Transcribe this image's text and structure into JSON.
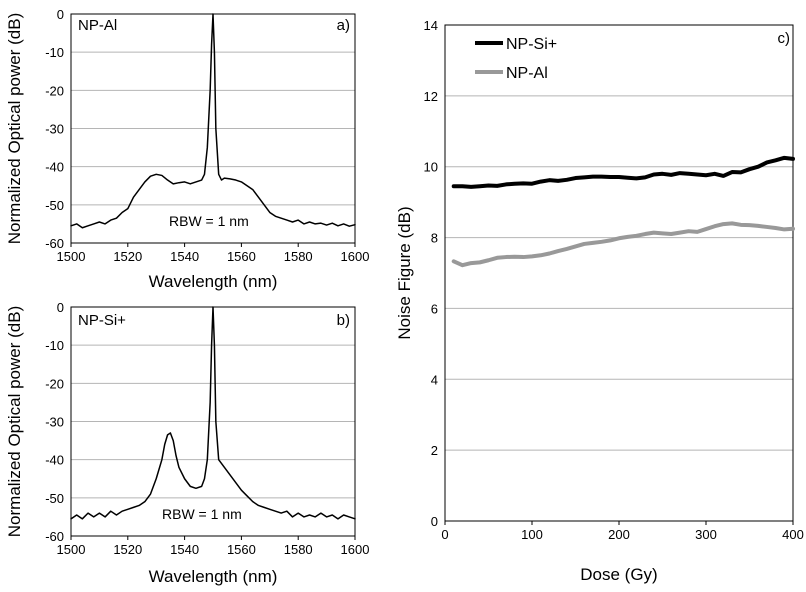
{
  "chart_data": [
    {
      "id": "a",
      "type": "line",
      "panel_label": "a)",
      "series_label": "NP-Al",
      "annotation": "RBW = 1 nm",
      "xlabel": "Wavelength (nm)",
      "ylabel": "Normalized Optical power (dB)",
      "xlim": [
        1500,
        1600
      ],
      "ylim": [
        -60,
        0
      ],
      "xticks": [
        "1500",
        "1520",
        "1540",
        "1560",
        "1580",
        "1600"
      ],
      "yticks": [
        "0",
        "-10",
        "-20",
        "-30",
        "-40",
        "-50",
        "-60"
      ],
      "grid": "horizontal",
      "series": [
        {
          "color": "#000000",
          "x": [
            1500,
            1502,
            1504,
            1506,
            1508,
            1510,
            1512,
            1514,
            1516,
            1518,
            1520,
            1522,
            1524,
            1526,
            1528,
            1530,
            1532,
            1534,
            1536,
            1538,
            1540,
            1542,
            1544,
            1546,
            1547,
            1548,
            1549,
            1549.5,
            1550,
            1550.5,
            1551,
            1552,
            1553,
            1554,
            1556,
            1558,
            1560,
            1562,
            1564,
            1566,
            1568,
            1570,
            1572,
            1574,
            1576,
            1578,
            1580,
            1582,
            1584,
            1586,
            1588,
            1590,
            1592,
            1594,
            1596,
            1598,
            1600
          ],
          "y": [
            -55.5,
            -55,
            -56,
            -55.5,
            -55,
            -54.5,
            -55,
            -54,
            -53.5,
            -52,
            -51,
            -48,
            -46,
            -44,
            -42.5,
            -42,
            -42.3,
            -43.5,
            -44.5,
            -44.2,
            -44,
            -44.5,
            -44,
            -43.5,
            -42,
            -35,
            -20,
            -8,
            0,
            -10,
            -30,
            -42,
            -43.5,
            -43,
            -43.2,
            -43.5,
            -44,
            -45,
            -46,
            -48,
            -50,
            -52,
            -53,
            -53.5,
            -54,
            -54.5,
            -54,
            -55,
            -54.5,
            -55,
            -54.8,
            -55.3,
            -54.8,
            -55.5,
            -55,
            -55.6,
            -55.2
          ]
        }
      ]
    },
    {
      "id": "b",
      "type": "line",
      "panel_label": "b)",
      "series_label": "NP-Si+",
      "annotation": "RBW = 1 nm",
      "xlabel": "Wavelength (nm)",
      "ylabel": "Normalized Optical power (dB)",
      "xlim": [
        1500,
        1600
      ],
      "ylim": [
        -60,
        0
      ],
      "xticks": [
        "1500",
        "1520",
        "1540",
        "1560",
        "1580",
        "1600"
      ],
      "yticks": [
        "0",
        "-10",
        "-20",
        "-30",
        "-40",
        "-50",
        "-60"
      ],
      "grid": "horizontal",
      "series": [
        {
          "color": "#000000",
          "x": [
            1500,
            1502,
            1504,
            1506,
            1508,
            1510,
            1512,
            1514,
            1516,
            1518,
            1520,
            1522,
            1524,
            1526,
            1528,
            1530,
            1532,
            1533,
            1534,
            1535,
            1536,
            1537,
            1538,
            1540,
            1542,
            1544,
            1546,
            1547,
            1548,
            1549,
            1549.5,
            1550,
            1550.5,
            1551,
            1552,
            1554,
            1556,
            1558,
            1560,
            1562,
            1564,
            1566,
            1568,
            1570,
            1572,
            1574,
            1576,
            1578,
            1580,
            1582,
            1584,
            1586,
            1588,
            1590,
            1592,
            1594,
            1596,
            1598,
            1600
          ],
          "y": [
            -55.5,
            -54.5,
            -55.5,
            -54,
            -55,
            -54,
            -55,
            -53.5,
            -54.5,
            -53.5,
            -53,
            -52.5,
            -52,
            -51,
            -49,
            -45,
            -40,
            -36,
            -33.5,
            -33,
            -35,
            -39,
            -42,
            -45,
            -47,
            -47.5,
            -47,
            -45,
            -40,
            -25,
            -10,
            0,
            -10,
            -30,
            -40,
            -42,
            -44,
            -46,
            -48,
            -49.5,
            -51,
            -52,
            -52.5,
            -53,
            -53.5,
            -54,
            -53.5,
            -55,
            -54,
            -55,
            -54.5,
            -55,
            -54,
            -55,
            -54.5,
            -55.5,
            -54.5,
            -55,
            -55.5
          ]
        }
      ]
    },
    {
      "id": "c",
      "type": "line",
      "panel_label": "c)",
      "xlabel": "Dose (Gy)",
      "ylabel": "Noise Figure (dB)",
      "xlim": [
        0,
        400
      ],
      "ylim": [
        0,
        14
      ],
      "xticks": [
        "0",
        "100",
        "200",
        "300",
        "400"
      ],
      "yticks": [
        "14",
        "12",
        "10",
        "8",
        "6",
        "4",
        "2",
        "0"
      ],
      "grid": "horizontal",
      "legend": "top-left",
      "series": [
        {
          "name": "NP-Si+",
          "color": "#000000",
          "x": [
            10,
            20,
            30,
            40,
            50,
            60,
            70,
            80,
            90,
            100,
            110,
            120,
            130,
            140,
            150,
            160,
            170,
            180,
            190,
            200,
            210,
            220,
            230,
            240,
            250,
            260,
            270,
            280,
            290,
            300,
            310,
            320,
            330,
            340,
            350,
            360,
            370,
            380,
            390,
            400
          ],
          "y": [
            9.45,
            9.45,
            9.43,
            9.45,
            9.47,
            9.46,
            9.5,
            9.52,
            9.53,
            9.52,
            9.58,
            9.62,
            9.6,
            9.63,
            9.68,
            9.7,
            9.72,
            9.72,
            9.71,
            9.71,
            9.69,
            9.67,
            9.7,
            9.78,
            9.8,
            9.77,
            9.82,
            9.8,
            9.78,
            9.76,
            9.8,
            9.74,
            9.85,
            9.84,
            9.93,
            10.0,
            10.12,
            10.18,
            10.25,
            10.22
          ]
        },
        {
          "name": "NP-Al",
          "color": "#999999",
          "x": [
            10,
            20,
            30,
            40,
            50,
            60,
            70,
            80,
            90,
            100,
            110,
            120,
            130,
            140,
            150,
            160,
            170,
            180,
            190,
            200,
            210,
            220,
            230,
            240,
            250,
            260,
            270,
            280,
            290,
            300,
            310,
            320,
            330,
            340,
            350,
            360,
            370,
            380,
            390,
            400
          ],
          "y": [
            7.33,
            7.22,
            7.28,
            7.3,
            7.36,
            7.43,
            7.45,
            7.46,
            7.45,
            7.47,
            7.5,
            7.55,
            7.62,
            7.68,
            7.75,
            7.82,
            7.85,
            7.88,
            7.92,
            7.98,
            8.02,
            8.05,
            8.1,
            8.14,
            8.12,
            8.1,
            8.14,
            8.18,
            8.16,
            8.24,
            8.32,
            8.38,
            8.4,
            8.36,
            8.35,
            8.33,
            8.3,
            8.27,
            8.23,
            8.25
          ]
        }
      ]
    }
  ]
}
